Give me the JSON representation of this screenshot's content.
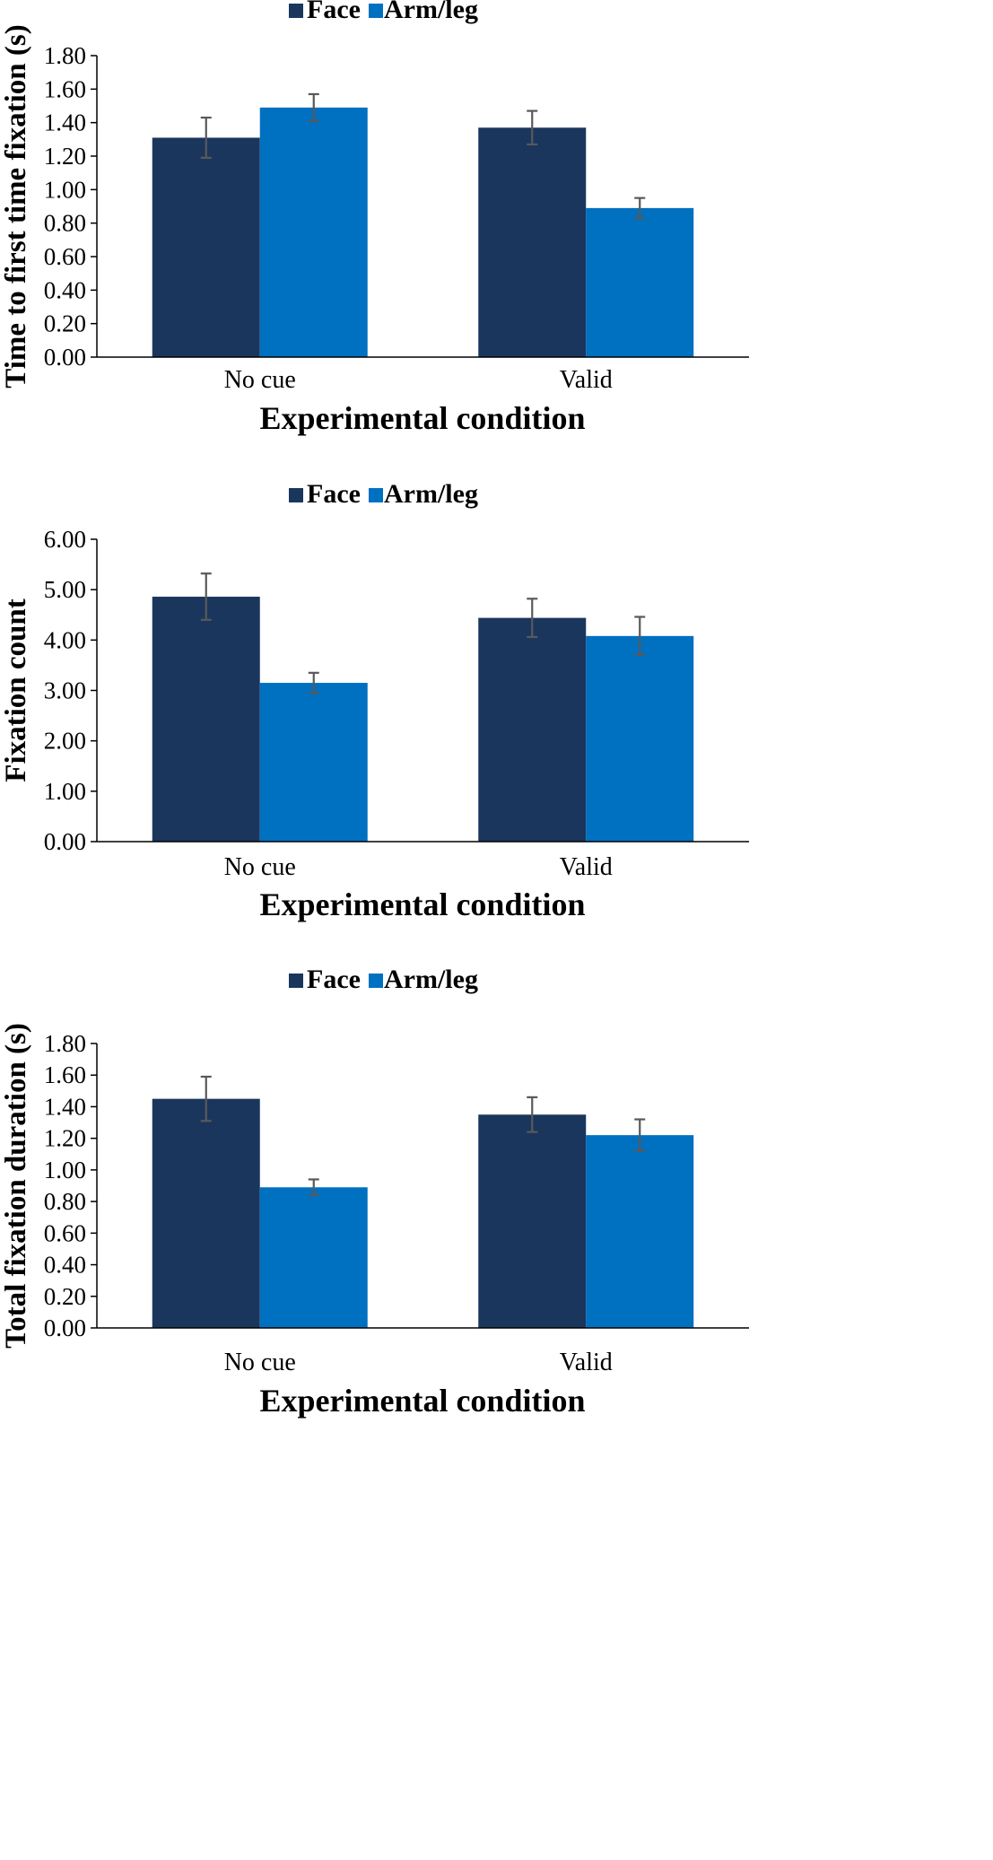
{
  "colors": {
    "face": "#1b365d",
    "arm_leg": "#0070c0",
    "error": "#595959",
    "axis": "#000000"
  },
  "chart_data": [
    {
      "type": "bar",
      "title": "",
      "legend": [
        "Face",
        "Arm/leg"
      ],
      "legend_position": "top",
      "categories": [
        "No cue",
        "Valid"
      ],
      "series": [
        {
          "name": "Face",
          "values": [
            1.31,
            1.37
          ],
          "errors": [
            0.12,
            0.1
          ]
        },
        {
          "name": "Arm/leg",
          "values": [
            1.49,
            0.89
          ],
          "errors": [
            0.08,
            0.06
          ]
        }
      ],
      "yticks": [
        "0.00",
        "0.20",
        "0.40",
        "0.60",
        "0.80",
        "1.00",
        "1.20",
        "1.40",
        "1.60",
        "1.80"
      ],
      "ylim": [
        0,
        1.8
      ],
      "xlabel": "Experimental condition",
      "ylabel": "Time to first time fixation (s)",
      "grid": false
    },
    {
      "type": "bar",
      "title": "",
      "legend": [
        "Face",
        "Arm/leg"
      ],
      "legend_position": "top",
      "categories": [
        "No cue",
        "Valid"
      ],
      "series": [
        {
          "name": "Face",
          "values": [
            4.86,
            4.44
          ],
          "errors": [
            0.46,
            0.38
          ]
        },
        {
          "name": "Arm/leg",
          "values": [
            3.15,
            4.08
          ],
          "errors": [
            0.2,
            0.38
          ]
        }
      ],
      "yticks": [
        "0.00",
        "1.00",
        "2.00",
        "3.00",
        "4.00",
        "5.00",
        "6.00"
      ],
      "ylim": [
        0,
        6
      ],
      "xlabel": "Experimental condition",
      "ylabel": "Fixation count",
      "grid": false
    },
    {
      "type": "bar",
      "title": "",
      "legend": [
        "Face",
        "Arm/leg"
      ],
      "legend_position": "top",
      "categories": [
        "No cue",
        "Valid"
      ],
      "series": [
        {
          "name": "Face",
          "values": [
            1.45,
            1.35
          ],
          "errors": [
            0.14,
            0.11
          ]
        },
        {
          "name": "Arm/leg",
          "values": [
            0.89,
            1.22
          ],
          "errors": [
            0.05,
            0.1
          ]
        }
      ],
      "yticks": [
        "0.00",
        "0.20",
        "0.40",
        "0.60",
        "0.80",
        "1.00",
        "1.20",
        "1.40",
        "1.60",
        "1.80"
      ],
      "ylim": [
        0,
        1.8
      ],
      "xlabel": "Experimental condition",
      "ylabel": "Total fixation duration (s)",
      "grid": false
    }
  ]
}
